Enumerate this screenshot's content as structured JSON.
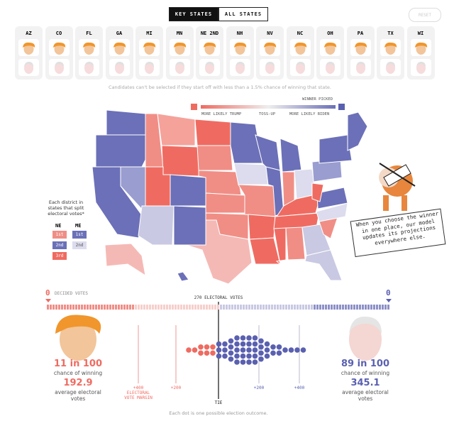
{
  "tabs": [
    "KEY STATES",
    "ALL STATES"
  ],
  "reset": "RESET",
  "states": [
    "AZ",
    "CO",
    "FL",
    "GA",
    "MI",
    "MN",
    "NE 2ND",
    "NH",
    "NV",
    "NC",
    "OH",
    "PA",
    "TX",
    "WI"
  ],
  "note": "Candidates can't be selected if they start off with less than a 1.5% chance of winning that state.",
  "legend": {
    "winner_picked": "WINNER PICKED",
    "more_trump": "MORE LIKELY TRUMP",
    "tossup": "TOSS-UP",
    "more_biden": "MORE LIKELY BIDEN"
  },
  "districts": {
    "title": "Each district in states that split electoral votes*",
    "ne": {
      "label": "NE",
      "rows": [
        "1st",
        "2nd",
        "3rd"
      ]
    },
    "me": {
      "label": "ME",
      "rows": [
        "1st",
        "2nd"
      ]
    }
  },
  "callout": "When you choose the winner in one place, our model updates its projections everywhere else.",
  "bar": {
    "left": "0",
    "decided": "DECIDED VOTES",
    "center": "270 ELECTORAL VOTES",
    "right": "0"
  },
  "trump": {
    "odds": "11 in 100",
    "odds_label": "chance of winning",
    "ev": "192.9",
    "ev_label": "average electoral votes"
  },
  "biden": {
    "odds": "89 in 100",
    "odds_label": "chance of winning",
    "ev": "345.1",
    "ev_label": "average electoral votes"
  },
  "margin": {
    "ticks": [
      "+400",
      "+200",
      "TIE",
      "+200",
      "+400"
    ],
    "title": "ELECTORAL VOTE MARGIN"
  },
  "footnote": "Each dot is one possible election outcome."
}
